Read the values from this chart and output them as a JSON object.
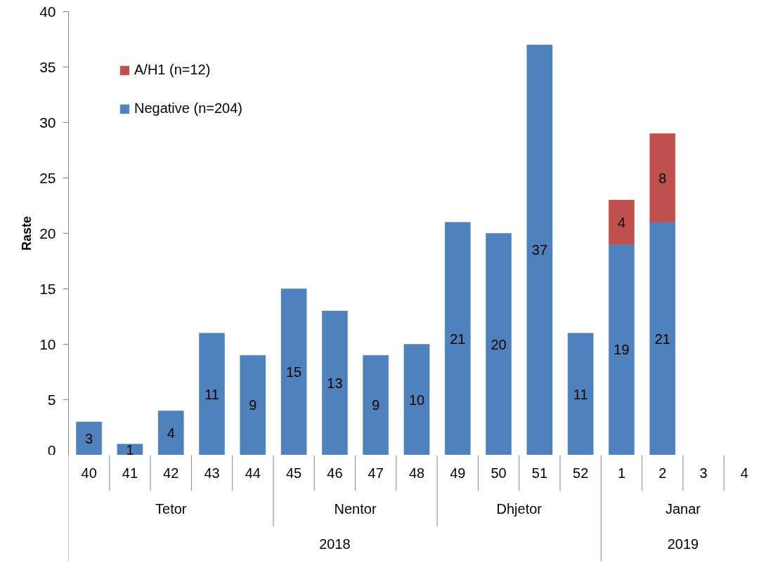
{
  "chart_data": {
    "type": "bar",
    "ylabel": "Raste",
    "categories": [
      "40",
      "41",
      "42",
      "43",
      "44",
      "45",
      "46",
      "47",
      "48",
      "49",
      "50",
      "51",
      "52",
      "1",
      "2",
      "3",
      "4"
    ],
    "annotations": [
      "Tetor",
      "Nentor",
      "Dhjetor",
      "Janar",
      "2018",
      "2019"
    ],
    "series": [
      {
        "name": "Negative (n=204)",
        "color": "#4f81bd",
        "values": [
          3,
          1,
          4,
          11,
          9,
          15,
          13,
          9,
          10,
          21,
          20,
          37,
          11,
          19,
          21,
          null,
          null
        ]
      },
      {
        "name": "A/H1 (n=12)",
        "color": "#c0504d",
        "values": [
          null,
          null,
          null,
          null,
          null,
          null,
          null,
          null,
          null,
          null,
          null,
          null,
          null,
          4,
          8,
          null,
          null
        ]
      }
    ],
    "stacked": true,
    "ylim": [
      0,
      40
    ],
    "yticks": [
      0,
      5,
      10,
      15,
      20,
      25,
      30,
      35,
      40
    ],
    "data_labels": true,
    "grid": false,
    "legend": "top left"
  }
}
